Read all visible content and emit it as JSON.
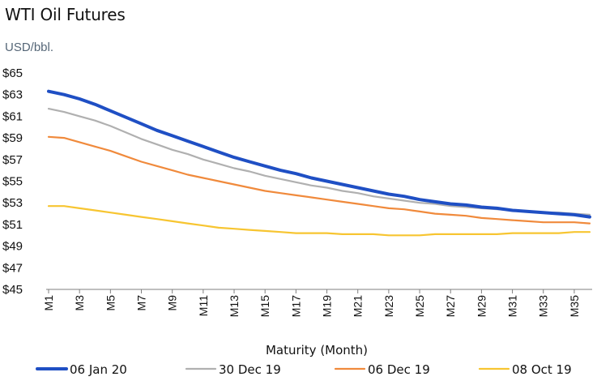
{
  "chart_data": {
    "type": "line",
    "title": "WTI Oil Futures",
    "ylabel": "USD/bbl.",
    "xlabel": "Maturity (Month)",
    "ylim": [
      45,
      65
    ],
    "yticks": [
      45,
      47,
      49,
      51,
      53,
      55,
      57,
      59,
      61,
      63,
      65
    ],
    "ytick_labels": [
      "$45",
      "$47",
      "$49",
      "$51",
      "$53",
      "$55",
      "$57",
      "$59",
      "$61",
      "$63",
      "$65"
    ],
    "xtick_labels": [
      "M1",
      "M3",
      "M5",
      "M7",
      "M9",
      "M11",
      "M13",
      "M15",
      "M17",
      "M19",
      "M21",
      "M23",
      "M25",
      "M27",
      "M29",
      "M31",
      "M33",
      "M35"
    ],
    "x": [
      1,
      2,
      3,
      4,
      5,
      6,
      7,
      8,
      9,
      10,
      11,
      12,
      13,
      14,
      15,
      16,
      17,
      18,
      19,
      20,
      21,
      22,
      23,
      24,
      25,
      26,
      27,
      28,
      29,
      30,
      31,
      32,
      33,
      34,
      35,
      36
    ],
    "series": [
      {
        "name": "06 Jan 20",
        "color": "#1f4fc4",
        "values": [
          63.3,
          63.0,
          62.6,
          62.1,
          61.5,
          60.9,
          60.3,
          59.7,
          59.2,
          58.7,
          58.2,
          57.7,
          57.2,
          56.8,
          56.4,
          56.0,
          55.7,
          55.3,
          55.0,
          54.7,
          54.4,
          54.1,
          53.8,
          53.6,
          53.3,
          53.1,
          52.9,
          52.8,
          52.6,
          52.5,
          52.3,
          52.2,
          52.1,
          52.0,
          51.9,
          51.7
        ]
      },
      {
        "name": "30 Dec 19",
        "color": "#b0b0b0",
        "values": [
          61.7,
          61.4,
          61.0,
          60.6,
          60.1,
          59.5,
          58.9,
          58.4,
          57.9,
          57.5,
          57.0,
          56.6,
          56.2,
          55.9,
          55.5,
          55.2,
          54.9,
          54.6,
          54.4,
          54.1,
          53.9,
          53.6,
          53.4,
          53.2,
          53.0,
          52.9,
          52.7,
          52.6,
          52.5,
          52.4,
          52.3,
          52.2,
          52.1,
          52.1,
          52.0,
          51.9
        ]
      },
      {
        "name": "06 Dec 19",
        "color": "#f08a3c",
        "values": [
          59.1,
          59.0,
          58.6,
          58.2,
          57.8,
          57.3,
          56.8,
          56.4,
          56.0,
          55.6,
          55.3,
          55.0,
          54.7,
          54.4,
          54.1,
          53.9,
          53.7,
          53.5,
          53.3,
          53.1,
          52.9,
          52.7,
          52.5,
          52.4,
          52.2,
          52.0,
          51.9,
          51.8,
          51.6,
          51.5,
          51.4,
          51.3,
          51.2,
          51.2,
          51.2,
          51.1
        ]
      },
      {
        "name": "08 Oct 19",
        "color": "#f7c531",
        "values": [
          52.7,
          52.7,
          52.5,
          52.3,
          52.1,
          51.9,
          51.7,
          51.5,
          51.3,
          51.1,
          50.9,
          50.7,
          50.6,
          50.5,
          50.4,
          50.3,
          50.2,
          50.2,
          50.2,
          50.1,
          50.1,
          50.1,
          50.0,
          50.0,
          50.0,
          50.1,
          50.1,
          50.1,
          50.1,
          50.1,
          50.2,
          50.2,
          50.2,
          50.2,
          50.3,
          50.3
        ]
      }
    ],
    "legend": "bottom"
  }
}
